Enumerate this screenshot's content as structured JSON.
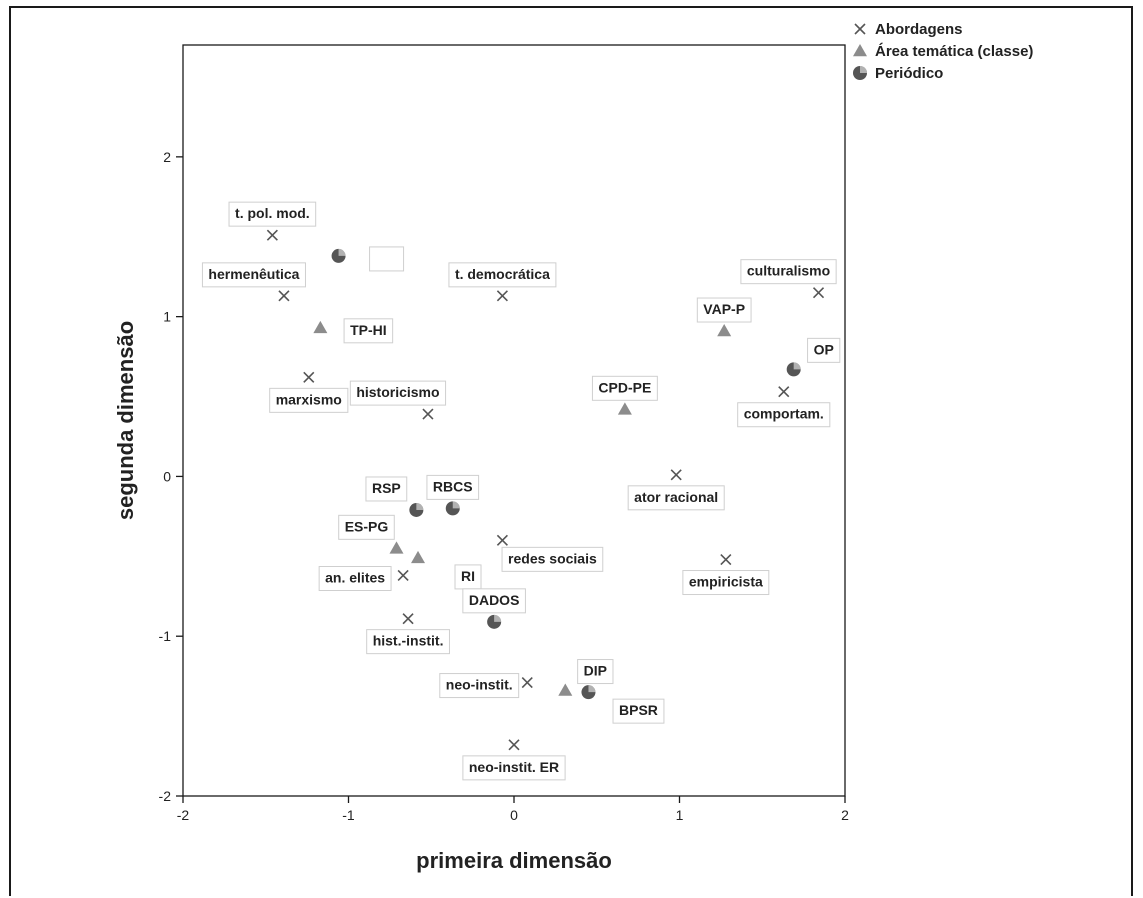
{
  "chart_data": {
    "type": "scatter",
    "xlabel": "primeira dimensão",
    "ylabel": "segunda dimensão",
    "xlim": [
      -2,
      2
    ],
    "ylim": [
      -2,
      2.7
    ],
    "xticks": [
      -2,
      -1,
      0,
      1,
      2
    ],
    "yticks": [
      -2,
      -1,
      0,
      1,
      2
    ],
    "grid": false,
    "legend_position": "top-right",
    "colors": {
      "cross": "#555555",
      "triangle": "#8c8c8c",
      "circle": "#555555"
    },
    "series": [
      {
        "name": "Abordagens",
        "marker": "cross",
        "points": [
          {
            "label": "t. pol. mod.",
            "x": -1.46,
            "y": 1.51,
            "lpos": "above"
          },
          {
            "label": "hermenêutica",
            "x": -1.39,
            "y": 1.13,
            "lpos": "above-left"
          },
          {
            "label": "marxismo",
            "x": -1.24,
            "y": 0.62,
            "lpos": "below"
          },
          {
            "label": "historicismo",
            "x": -0.52,
            "y": 0.39,
            "lpos": "above-left"
          },
          {
            "label": "t. democrática",
            "x": -0.07,
            "y": 1.13,
            "lpos": "above"
          },
          {
            "label": "culturalismo",
            "x": 1.84,
            "y": 1.15,
            "lpos": "above-left"
          },
          {
            "label": "comportam.",
            "x": 1.63,
            "y": 0.53,
            "lpos": "below"
          },
          {
            "label": "ator racional",
            "x": 0.98,
            "y": 0.01,
            "lpos": "below"
          },
          {
            "label": "redes sociais",
            "x": -0.07,
            "y": -0.4,
            "lpos": "below-right"
          },
          {
            "label": "empiricista",
            "x": 1.28,
            "y": -0.52,
            "lpos": "below"
          },
          {
            "label": "an. elites",
            "x": -0.67,
            "y": -0.62,
            "lpos": "left"
          },
          {
            "label": "hist.-instit.",
            "x": -0.64,
            "y": -0.89,
            "lpos": "below"
          },
          {
            "label": "neo-instit.",
            "x": 0.08,
            "y": -1.29,
            "lpos": "left"
          },
          {
            "label": "neo-instit. ER",
            "x": 0.0,
            "y": -1.68,
            "lpos": "below"
          }
        ]
      },
      {
        "name": "Área temática (classe)",
        "marker": "triangle",
        "points": [
          {
            "label": "TP-HI",
            "x": -1.17,
            "y": 0.93,
            "lpos": "right"
          },
          {
            "label": "VAP-P",
            "x": 1.27,
            "y": 0.91,
            "lpos": "above"
          },
          {
            "label": "CPD-PE",
            "x": 0.67,
            "y": 0.42,
            "lpos": "above"
          },
          {
            "label": "ES-PG",
            "x": -0.71,
            "y": -0.45,
            "lpos": "above-left"
          },
          {
            "label": "RI",
            "x": -0.58,
            "y": -0.51,
            "lpos": "below-right"
          },
          {
            "label": "DIP",
            "x": 0.31,
            "y": -1.34,
            "lpos": "above-right"
          }
        ]
      },
      {
        "name": "Periódico",
        "marker": "circle",
        "points": [
          {
            "label": "",
            "x": -1.06,
            "y": 1.38,
            "lpos": "right"
          },
          {
            "label": "OP",
            "x": 1.69,
            "y": 0.67,
            "lpos": "above-right"
          },
          {
            "label": "RSP",
            "x": -0.59,
            "y": -0.21,
            "lpos": "above-left"
          },
          {
            "label": "RBCS",
            "x": -0.37,
            "y": -0.2,
            "lpos": "above"
          },
          {
            "label": "DADOS",
            "x": -0.12,
            "y": -0.91,
            "lpos": "above"
          },
          {
            "label": "BPSR",
            "x": 0.45,
            "y": -1.35,
            "lpos": "below-right"
          }
        ]
      }
    ]
  }
}
